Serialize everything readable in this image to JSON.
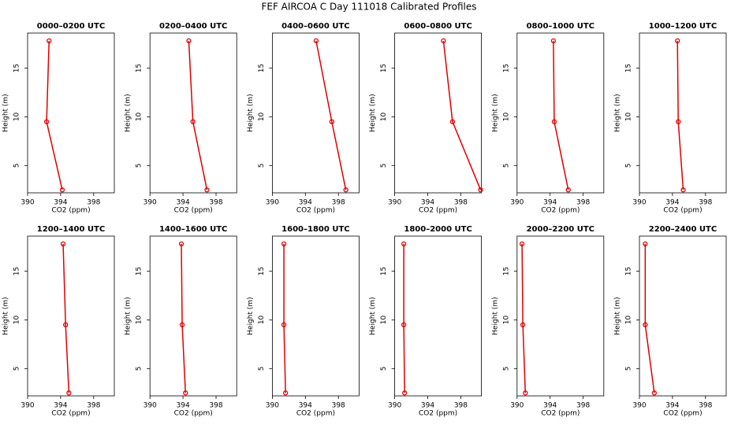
{
  "title": "FEF AIRCOA C  Day 111018  Calibrated Profiles",
  "chart_data": [
    {
      "type": "line",
      "title": "0000–0200 UTC",
      "xlabel": "CO2 (ppm)",
      "ylabel": "Height (m)",
      "color": "#e00000",
      "x": [
        392.6,
        392.3,
        394.2
      ],
      "y": [
        17.8,
        9.5,
        2.5
      ],
      "xlim": [
        390,
        400.5
      ],
      "xticks": [
        390,
        394,
        398
      ],
      "ylim": [
        2.2,
        18.6
      ],
      "yticks": [
        5,
        10,
        15
      ]
    },
    {
      "type": "line",
      "title": "0200–0400 UTC",
      "xlabel": "CO2 (ppm)",
      "ylabel": "Height (m)",
      "color": "#e00000",
      "x": [
        394.7,
        395.2,
        396.9
      ],
      "y": [
        17.8,
        9.5,
        2.5
      ],
      "xlim": [
        390,
        400.5
      ],
      "xticks": [
        390,
        394,
        398
      ],
      "ylim": [
        2.2,
        18.6
      ],
      "yticks": [
        5,
        10,
        15
      ]
    },
    {
      "type": "line",
      "title": "0400–0600 UTC",
      "xlabel": "CO2 (ppm)",
      "ylabel": "Height (m)",
      "color": "#e00000",
      "x": [
        395.3,
        397.2,
        398.9
      ],
      "y": [
        17.8,
        9.5,
        2.5
      ],
      "xlim": [
        390,
        400.5
      ],
      "xticks": [
        390,
        394,
        398
      ],
      "ylim": [
        2.2,
        18.6
      ],
      "yticks": [
        5,
        10,
        15
      ]
    },
    {
      "type": "line",
      "title": "0600–0800 UTC",
      "xlabel": "CO2 (ppm)",
      "ylabel": "Height (m)",
      "color": "#e00000",
      "x": [
        395.9,
        397.0,
        400.4
      ],
      "y": [
        17.8,
        9.5,
        2.5
      ],
      "xlim": [
        390,
        400.5
      ],
      "xticks": [
        390,
        394,
        398
      ],
      "ylim": [
        2.2,
        18.6
      ],
      "yticks": [
        5,
        10,
        15
      ]
    },
    {
      "type": "line",
      "title": "0800–1000 UTC",
      "xlabel": "CO2 (ppm)",
      "ylabel": "Height (m)",
      "color": "#e00000",
      "x": [
        394.4,
        394.5,
        396.2
      ],
      "y": [
        17.8,
        9.5,
        2.5
      ],
      "xlim": [
        390,
        400.5
      ],
      "xticks": [
        390,
        394,
        398
      ],
      "ylim": [
        2.2,
        18.6
      ],
      "yticks": [
        5,
        10,
        15
      ]
    },
    {
      "type": "line",
      "title": "1000–1200 UTC",
      "xlabel": "CO2 (ppm)",
      "ylabel": "Height (m)",
      "color": "#e00000",
      "x": [
        394.6,
        394.7,
        395.3
      ],
      "y": [
        17.8,
        9.5,
        2.5
      ],
      "xlim": [
        390,
        400.5
      ],
      "xticks": [
        390,
        394,
        398
      ],
      "ylim": [
        2.2,
        18.6
      ],
      "yticks": [
        5,
        10,
        15
      ]
    },
    {
      "type": "line",
      "title": "1200–1400 UTC",
      "xlabel": "CO2 (ppm)",
      "ylabel": "Height (m)",
      "color": "#e00000",
      "x": [
        394.3,
        394.6,
        395.0
      ],
      "y": [
        17.8,
        9.5,
        2.5
      ],
      "xlim": [
        390,
        400.5
      ],
      "xticks": [
        390,
        394,
        398
      ],
      "ylim": [
        2.2,
        18.6
      ],
      "yticks": [
        5,
        10,
        15
      ]
    },
    {
      "type": "line",
      "title": "1400–1600 UTC",
      "xlabel": "CO2 (ppm)",
      "ylabel": "Height (m)",
      "color": "#e00000",
      "x": [
        393.8,
        393.9,
        394.3
      ],
      "y": [
        17.8,
        9.5,
        2.5
      ],
      "xlim": [
        390,
        400.5
      ],
      "xticks": [
        390,
        394,
        398
      ],
      "ylim": [
        2.2,
        18.6
      ],
      "yticks": [
        5,
        10,
        15
      ]
    },
    {
      "type": "line",
      "title": "1600–1800 UTC",
      "xlabel": "CO2 (ppm)",
      "ylabel": "Height (m)",
      "color": "#e00000",
      "x": [
        391.4,
        391.4,
        391.6
      ],
      "y": [
        17.8,
        9.5,
        2.5
      ],
      "xlim": [
        390,
        400.5
      ],
      "xticks": [
        390,
        394,
        398
      ],
      "ylim": [
        2.2,
        18.6
      ],
      "yticks": [
        5,
        10,
        15
      ]
    },
    {
      "type": "line",
      "title": "1800–2000 UTC",
      "xlabel": "CO2 (ppm)",
      "ylabel": "Height (m)",
      "color": "#e00000",
      "x": [
        391.1,
        391.1,
        391.2
      ],
      "y": [
        17.8,
        9.5,
        2.5
      ],
      "xlim": [
        390,
        400.5
      ],
      "xticks": [
        390,
        394,
        398
      ],
      "ylim": [
        2.2,
        18.6
      ],
      "yticks": [
        5,
        10,
        15
      ]
    },
    {
      "type": "line",
      "title": "2000–2200 UTC",
      "xlabel": "CO2 (ppm)",
      "ylabel": "Height (m)",
      "color": "#e00000",
      "x": [
        390.6,
        390.7,
        391.0
      ],
      "y": [
        17.8,
        9.5,
        2.5
      ],
      "xlim": [
        390,
        400.5
      ],
      "xticks": [
        390,
        394,
        398
      ],
      "ylim": [
        2.2,
        18.6
      ],
      "yticks": [
        5,
        10,
        15
      ]
    },
    {
      "type": "line",
      "title": "2200–2400 UTC",
      "xlabel": "CO2 (ppm)",
      "ylabel": "Height (m)",
      "color": "#e00000",
      "x": [
        390.7,
        390.7,
        391.8
      ],
      "y": [
        17.8,
        9.5,
        2.5
      ],
      "xlim": [
        390,
        400.5
      ],
      "xticks": [
        390,
        394,
        398
      ],
      "ylim": [
        2.2,
        18.6
      ],
      "yticks": [
        5,
        10,
        15
      ]
    }
  ]
}
